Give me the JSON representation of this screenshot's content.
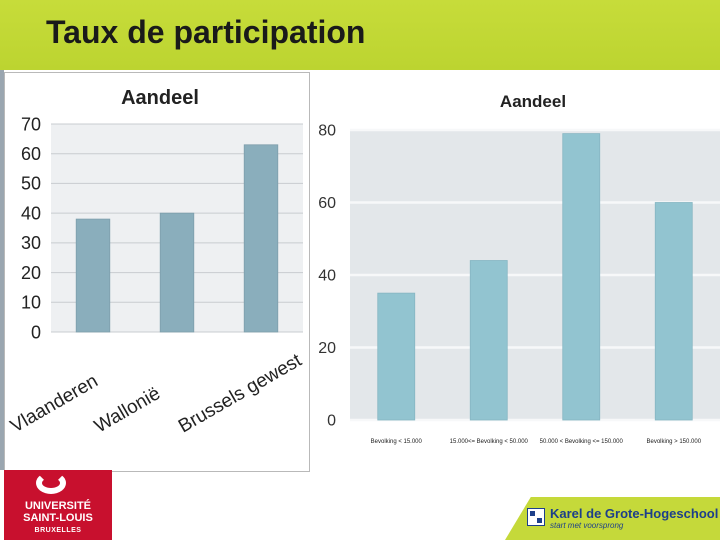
{
  "header": {
    "title": "Taux de participation"
  },
  "colors": {
    "header_band": "#c2d935",
    "bar_left": "#8aaebc",
    "bar_right": "#92c4d0"
  },
  "chart_data": [
    {
      "type": "bar",
      "title": "Aandeel",
      "categories": [
        "Vlaanderen",
        "Wallonië",
        "Brussels gewest"
      ],
      "values": [
        38,
        40,
        63
      ],
      "ylim": [
        0,
        70
      ],
      "yticks": [
        "0",
        "10",
        "20",
        "30",
        "40",
        "50",
        "60",
        "70"
      ],
      "grid": true
    },
    {
      "type": "bar",
      "title": "Aandeel",
      "categories": [
        "Bevolking < 15.000",
        "15.000<= Bevolking < 50.000",
        "50.000 < Bevolking <= 150.000",
        "Bevolking > 150.000"
      ],
      "values": [
        35,
        44,
        79,
        60
      ],
      "ylim": [
        0,
        80
      ],
      "yticks": [
        "0",
        "20",
        "40",
        "60",
        "80"
      ],
      "grid": true
    }
  ],
  "logos": {
    "left": {
      "line1": "UNIVERSITÉ",
      "line2": "SAINT-LOUIS",
      "line3": "BRUXELLES"
    },
    "right": {
      "name": "Karel de Grote-Hogeschool",
      "tagline": "start met voorsprong"
    }
  }
}
